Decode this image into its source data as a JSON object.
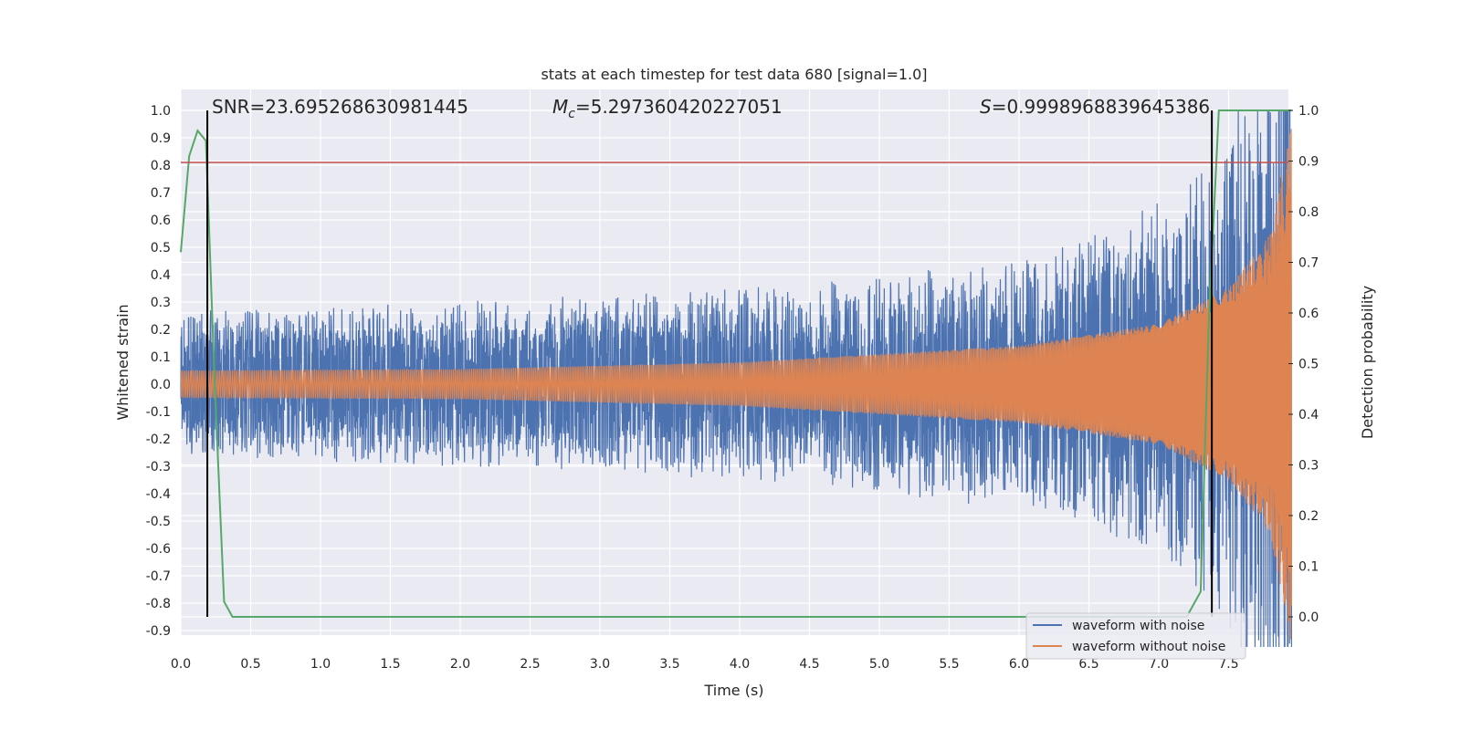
{
  "chart_data": {
    "type": "line",
    "title": "stats at each timestep for test data 680 [signal=1.0]",
    "xlabel": "Time (s)",
    "ylabel_left": "Whitened strain",
    "ylabel_right": "Detection probability",
    "xlim": [
      0.0,
      8.0
    ],
    "ylim_left": [
      -1.0,
      1.05
    ],
    "ylim_right": [
      -0.095,
      1.0
    ],
    "x_ticks": [
      "0.0",
      "0.5",
      "1.0",
      "1.5",
      "2.0",
      "2.5",
      "3.0",
      "3.5",
      "4.0",
      "4.5",
      "5.0",
      "5.5",
      "6.0",
      "6.5",
      "7.0",
      "7.5"
    ],
    "y_ticks_left": [
      "1.0",
      "0.9",
      "0.8",
      "0.7",
      "0.6",
      "0.5",
      "0.4",
      "0.3",
      "0.2",
      "0.1",
      "0.0",
      "-0.1",
      "-0.2",
      "-0.3",
      "-0.4",
      "-0.5",
      "-0.6",
      "-0.7",
      "-0.8",
      "-0.9"
    ],
    "y_ticks_right": [
      "1.0",
      "0.9",
      "0.8",
      "0.7",
      "0.6",
      "0.5",
      "0.4",
      "0.3",
      "0.2",
      "0.1",
      "0.0"
    ],
    "annotations": {
      "snr": "SNR=23.695268630981445",
      "mc_symbol": "M",
      "mc_sub": "c",
      "mc_value": "=5.297360420227051",
      "s_symbol": "S",
      "s_value": "=0.9998968839645386"
    },
    "legend": {
      "position": "bottom-right",
      "entries": [
        "waveform with noise",
        "waveform without noise"
      ]
    },
    "threshold_left": 0.81,
    "vlines_x": [
      0.19,
      7.38
    ],
    "series": [
      {
        "name": "waveform with noise",
        "color": "#4c72b0",
        "noise_amplitude_envelope": [
          [
            0.0,
            0.22
          ],
          [
            3.0,
            0.26
          ],
          [
            5.0,
            0.29
          ],
          [
            6.5,
            0.36
          ],
          [
            7.3,
            0.5
          ],
          [
            7.7,
            0.72
          ],
          [
            7.95,
            1.0
          ]
        ]
      },
      {
        "name": "waveform without noise",
        "color": "#dd8452",
        "signal_amplitude_envelope": [
          [
            0.0,
            0.05
          ],
          [
            2.0,
            0.055
          ],
          [
            4.0,
            0.08
          ],
          [
            6.0,
            0.14
          ],
          [
            7.0,
            0.22
          ],
          [
            7.5,
            0.35
          ],
          [
            7.8,
            0.55
          ],
          [
            7.95,
            0.95
          ]
        ]
      },
      {
        "name": "detection probability",
        "color": "#55a868",
        "axis": "right",
        "x": [
          0.0,
          0.06,
          0.12,
          0.18,
          0.24,
          0.31,
          0.37,
          0.5,
          1.0,
          2.0,
          3.0,
          4.0,
          5.0,
          6.0,
          6.5,
          7.0,
          7.2,
          7.3,
          7.36,
          7.43,
          7.6,
          7.8,
          7.95
        ],
        "y": [
          0.72,
          0.91,
          0.96,
          0.94,
          0.48,
          0.03,
          0.0,
          0.0,
          0.0,
          0.0,
          0.0,
          0.0,
          0.0,
          0.0,
          0.0,
          0.0,
          0.0,
          0.05,
          0.6,
          1.0,
          1.0,
          1.0,
          1.0
        ]
      }
    ],
    "colors": {
      "background": "#eaeaf2",
      "grid": "#ffffff",
      "threshold": "#c44e52",
      "vline": "#000000"
    }
  }
}
